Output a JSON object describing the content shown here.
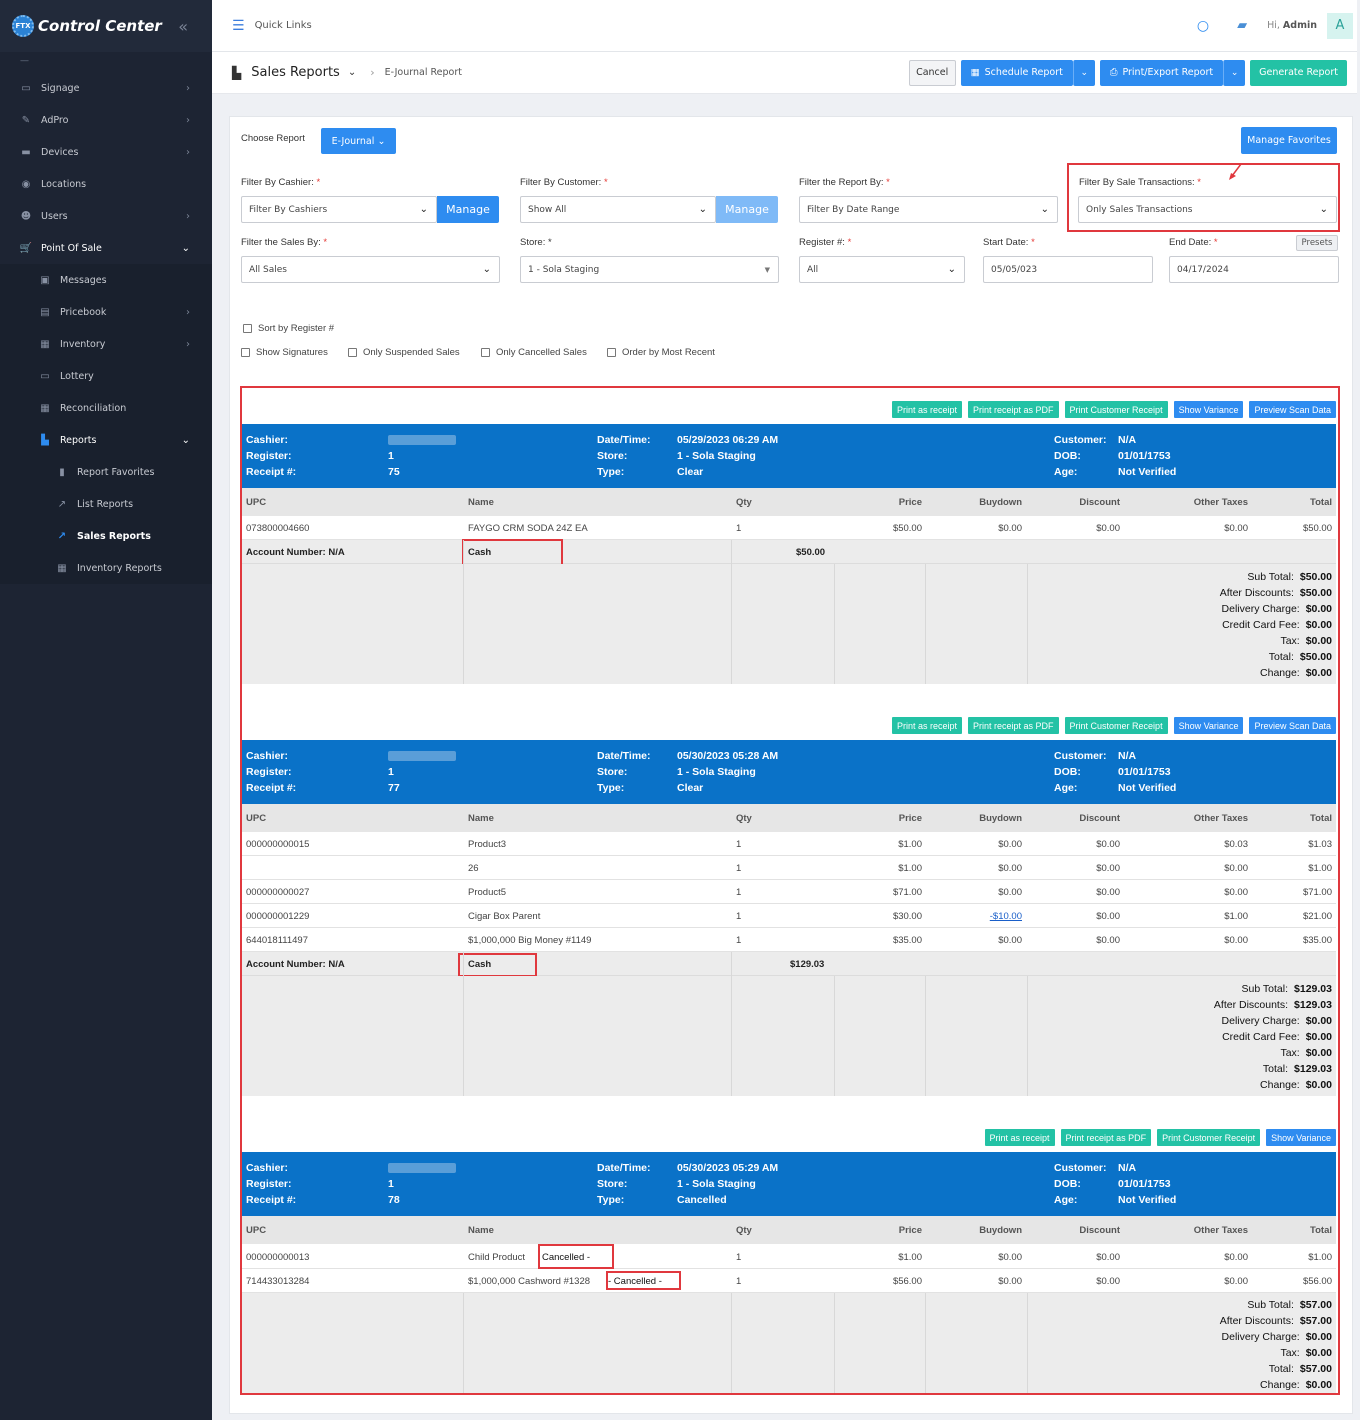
{
  "app": {
    "title": "Control Center",
    "logo_text": "FTX"
  },
  "sidebar": {
    "items": [
      {
        "label": "Signage",
        "icon": "monitor-icon"
      },
      {
        "label": "AdPro",
        "icon": "brush-icon"
      },
      {
        "label": "Devices",
        "icon": "devices-icon"
      },
      {
        "label": "Locations",
        "icon": "location-pin-icon"
      },
      {
        "label": "Users",
        "icon": "users-icon"
      },
      {
        "label": "Point Of Sale",
        "icon": "cart-icon"
      }
    ],
    "pos_items": [
      {
        "label": "Messages"
      },
      {
        "label": "Pricebook"
      },
      {
        "label": "Inventory"
      },
      {
        "label": "Lottery"
      },
      {
        "label": "Reconciliation"
      },
      {
        "label": "Reports"
      }
    ],
    "report_items": [
      {
        "label": "Report Favorites"
      },
      {
        "label": "List Reports"
      },
      {
        "label": "Sales Reports"
      },
      {
        "label": "Inventory Reports"
      }
    ]
  },
  "topbar": {
    "quick_links": "Quick Links",
    "greeting": "Hi,",
    "user": "Admin",
    "avatar": "A"
  },
  "titlebar": {
    "title": "Sales Reports",
    "breadcrumb": "E-Journal Report",
    "cancel": "Cancel",
    "schedule": "Schedule Report",
    "print_export": "Print/Export Report",
    "generate": "Generate Report"
  },
  "form": {
    "choose_report_label": "Choose Report",
    "choose_report_value": "E-Journal",
    "manage_favorites": "Manage Favorites",
    "cashier_label": "Filter By Cashier:",
    "cashier_value": "Filter By Cashiers",
    "manage": "Manage",
    "customer_label": "Filter By Customer:",
    "customer_value": "Show All",
    "report_by_label": "Filter the Report By:",
    "report_by_value": "Filter By Date Range",
    "sale_tx_label": "Filter By Sale Transactions:",
    "sale_tx_value": "Only Sales Transactions",
    "sales_by_label": "Filter the Sales By:",
    "sales_by_value": "All Sales",
    "store_label": "Store:",
    "store_value": "1 - Sola Staging",
    "register_label": "Register #:",
    "register_value": "All",
    "start_label": "Start Date:",
    "start_value": "05/05/023",
    "end_label": "End Date:",
    "end_value": "04/17/2024",
    "presets": "Presets",
    "required": "*",
    "checks": {
      "sort_register": "Sort by Register #",
      "show_signatures": "Show Signatures",
      "only_suspended": "Only Suspended Sales",
      "only_cancelled": "Only Cancelled Sales",
      "order_recent": "Order by Most Recent"
    }
  },
  "actions": {
    "print_receipt": "Print as receipt",
    "print_pdf": "Print receipt as PDF",
    "print_customer": "Print Customer Receipt",
    "show_variance": "Show Variance",
    "preview_scan": "Preview Scan Data"
  },
  "labels": {
    "cashier": "Cashier:",
    "register": "Register:",
    "receipt": "Receipt #:",
    "datetime": "Date/Time:",
    "store": "Store:",
    "type": "Type:",
    "customer": "Customer:",
    "dob": "DOB:",
    "age": "Age:",
    "account_number": "Account Number: N/A",
    "subtotal": "Sub Total:",
    "after_discounts": "After Discounts:",
    "delivery": "Delivery Charge:",
    "cc_fee": "Credit Card Fee:",
    "tax": "Tax:",
    "total": "Total:",
    "change": "Change:"
  },
  "columns": [
    "UPC",
    "Name",
    "Qty",
    "Price",
    "Buydown",
    "Discount",
    "Other Taxes",
    "Total"
  ],
  "receipts": [
    {
      "register": "1",
      "receipt": "75",
      "datetime": "05/29/2023 06:29 AM",
      "store": "1 - Sola Staging",
      "type": "Clear",
      "customer": "N/A",
      "dob": "01/01/1753",
      "age": "Not Verified",
      "rows": [
        {
          "upc": "073800004660",
          "name": "FAYGO CRM SODA 24Z EA",
          "qty": "1",
          "price": "$50.00",
          "buydown": "$0.00",
          "discount": "$0.00",
          "other": "$0.00",
          "total": "$50.00"
        }
      ],
      "tender": "Cash",
      "tender_amount": "$50.00",
      "totals": {
        "subtotal": "$50.00",
        "after_discounts": "$50.00",
        "delivery": "$0.00",
        "cc_fee": "$0.00",
        "tax": "$0.00",
        "total": "$50.00",
        "change": "$0.00"
      }
    },
    {
      "register": "1",
      "receipt": "77",
      "datetime": "05/30/2023 05:28 AM",
      "store": "1 - Sola Staging",
      "type": "Clear",
      "customer": "N/A",
      "dob": "01/01/1753",
      "age": "Not Verified",
      "rows": [
        {
          "upc": "000000000015",
          "name": "Product3",
          "qty": "1",
          "price": "$1.00",
          "buydown": "$0.00",
          "discount": "$0.00",
          "other": "$0.03",
          "total": "$1.03"
        },
        {
          "upc": "",
          "name": "26",
          "qty": "1",
          "price": "$1.00",
          "buydown": "$0.00",
          "discount": "$0.00",
          "other": "$0.00",
          "total": "$1.00"
        },
        {
          "upc": "000000000027",
          "name": "Product5",
          "qty": "1",
          "price": "$71.00",
          "buydown": "$0.00",
          "discount": "$0.00",
          "other": "$0.00",
          "total": "$71.00"
        },
        {
          "upc": "000000001229",
          "name": "Cigar Box Parent",
          "qty": "1",
          "price": "$30.00",
          "buydown": "-$10.00",
          "discount": "$0.00",
          "other": "$1.00",
          "total": "$21.00"
        },
        {
          "upc": "644018111497",
          "name": "$1,000,000 Big Money #1149",
          "qty": "1",
          "price": "$35.00",
          "buydown": "$0.00",
          "discount": "$0.00",
          "other": "$0.00",
          "total": "$35.00"
        }
      ],
      "tender": "Cash",
      "tender_amount": "$129.03",
      "totals": {
        "subtotal": "$129.03",
        "after_discounts": "$129.03",
        "delivery": "$0.00",
        "cc_fee": "$0.00",
        "tax": "$0.00",
        "total": "$129.03",
        "change": "$0.00"
      }
    },
    {
      "register": "1",
      "receipt": "78",
      "datetime": "05/30/2023 05:29 AM",
      "store": "1 - Sola Staging",
      "type": "Cancelled",
      "customer": "N/A",
      "dob": "01/01/1753",
      "age": "Not Verified",
      "rows": [
        {
          "upc": "000000000013",
          "name": "Child Product",
          "tag": "Cancelled -",
          "qty": "1",
          "price": "$1.00",
          "buydown": "$0.00",
          "discount": "$0.00",
          "other": "$0.00",
          "total": "$1.00"
        },
        {
          "upc": "714433013284",
          "name": "$1,000,000 Cashword #1328",
          "tag": "- Cancelled -",
          "qty": "1",
          "price": "$56.00",
          "buydown": "$0.00",
          "discount": "$0.00",
          "other": "$0.00",
          "total": "$56.00"
        }
      ],
      "totals": {
        "subtotal": "$57.00",
        "after_discounts": "$57.00",
        "delivery": "$0.00",
        "tax": "$0.00",
        "total": "$57.00",
        "change": "$0.00"
      }
    }
  ]
}
